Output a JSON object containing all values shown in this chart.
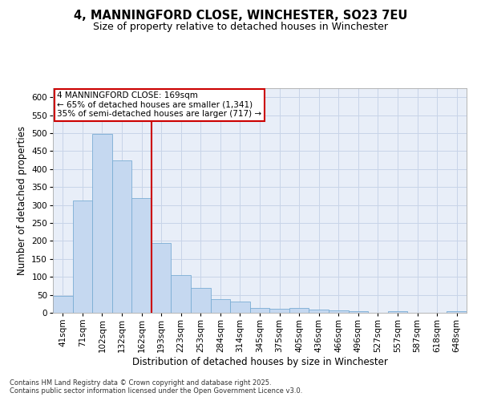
{
  "title_line1": "4, MANNINGFORD CLOSE, WINCHESTER, SO23 7EU",
  "title_line2": "Size of property relative to detached houses in Winchester",
  "xlabel": "Distribution of detached houses by size in Winchester",
  "ylabel": "Number of detached properties",
  "categories": [
    "41sqm",
    "71sqm",
    "102sqm",
    "132sqm",
    "162sqm",
    "193sqm",
    "223sqm",
    "253sqm",
    "284sqm",
    "314sqm",
    "345sqm",
    "375sqm",
    "405sqm",
    "436sqm",
    "466sqm",
    "496sqm",
    "527sqm",
    "557sqm",
    "587sqm",
    "618sqm",
    "648sqm"
  ],
  "values": [
    46,
    312,
    497,
    424,
    320,
    195,
    105,
    70,
    38,
    32,
    13,
    12,
    14,
    10,
    6,
    5,
    0,
    4,
    0,
    0,
    4
  ],
  "bar_color": "#c5d8f0",
  "bar_edge_color": "#7aadd4",
  "red_line_x": 4.5,
  "annotation_line1": "4 MANNINGFORD CLOSE: 169sqm",
  "annotation_line2": "← 65% of detached houses are smaller (1,341)",
  "annotation_line3": "35% of semi-detached houses are larger (717) →",
  "annotation_box_color": "#ffffff",
  "annotation_box_edge": "#cc0000",
  "red_line_color": "#cc0000",
  "grid_color": "#c8d4e8",
  "background_color": "#e8eef8",
  "footer_text": "Contains HM Land Registry data © Crown copyright and database right 2025.\nContains public sector information licensed under the Open Government Licence v3.0.",
  "ylim": [
    0,
    625
  ],
  "yticks": [
    0,
    50,
    100,
    150,
    200,
    250,
    300,
    350,
    400,
    450,
    500,
    550,
    600
  ],
  "title_fontsize": 10.5,
  "subtitle_fontsize": 9,
  "axis_label_fontsize": 8.5,
  "tick_fontsize": 7.5,
  "annotation_fontsize": 7.5,
  "footer_fontsize": 6.0
}
